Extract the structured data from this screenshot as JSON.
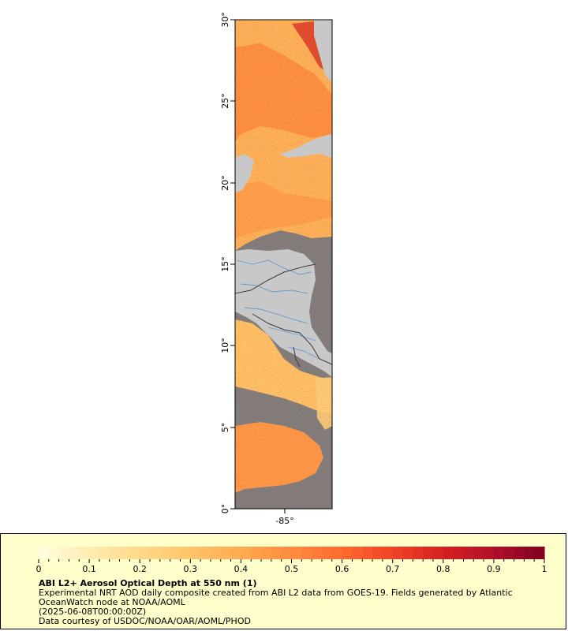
{
  "map": {
    "lat_labels": [
      "30°",
      "25°",
      "20°",
      "15°",
      "10°",
      "5°",
      "0°"
    ],
    "lon_labels": [
      "-85°"
    ],
    "colors": {
      "land": "#c8c8c8",
      "no_data": "#7f7f7f",
      "rivers": "#6699cc",
      "borders": "#555555"
    }
  },
  "legend": {
    "ticks": [
      "0",
      "0.1",
      "0.2",
      "0.3",
      "0.4",
      "0.5",
      "0.6",
      "0.7",
      "0.8",
      "0.9",
      "1"
    ],
    "colors": [
      "#ffffe0",
      "#ffedb0",
      "#ffd98a",
      "#ffc46a",
      "#ffaa50",
      "#ff8c3e",
      "#ff6a30",
      "#f04428",
      "#d62020",
      "#b0102a",
      "#800020"
    ],
    "title": "ABI L2+ Aerosol Optical Depth at 550 nm (1)",
    "description": "Experimental NRT AOD daily composite created from ABI L2 data from GOES-19. Fields generated by Atlantic OceanWatch node at NOAA/AOML",
    "timestamp": "(2025-06-08T00:00:00Z)",
    "credit": "Data courtesy of USDOC/NOAA/OAR/AOML/PHOD"
  }
}
